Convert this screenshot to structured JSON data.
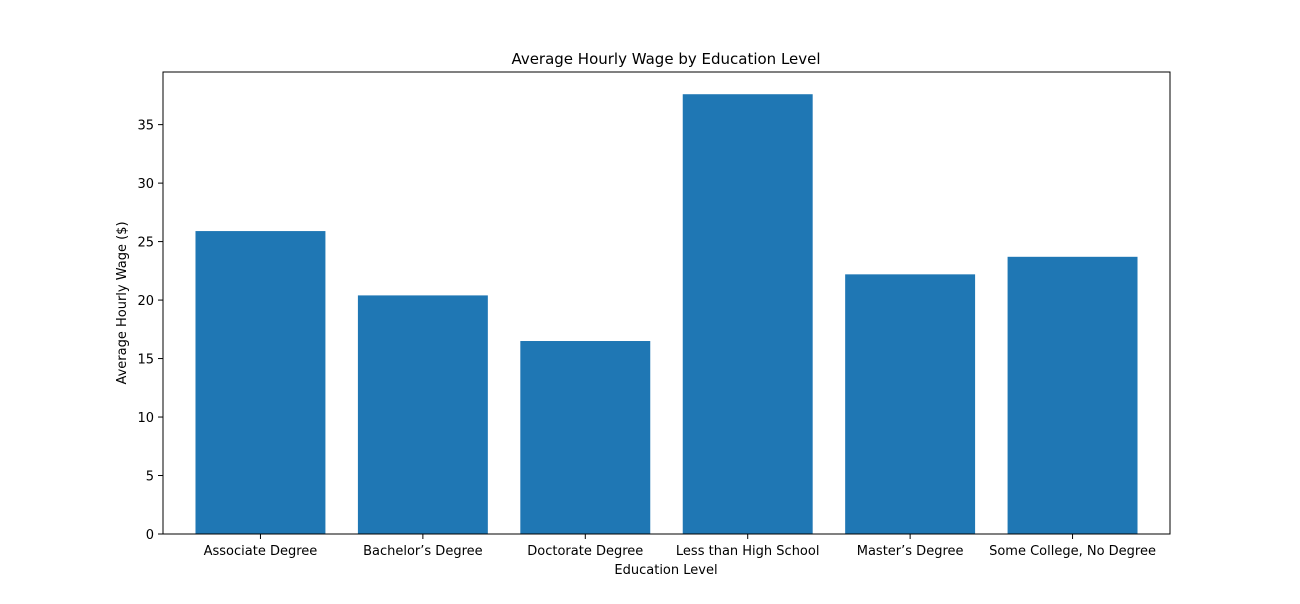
{
  "chart_data": {
    "type": "bar",
    "title": "Average Hourly Wage by Education Level",
    "xlabel": "Education Level",
    "ylabel": "Average Hourly Wage ($)",
    "categories": [
      "Associate Degree",
      "Bachelor’s Degree",
      "Doctorate Degree",
      "Less than High School",
      "Master’s Degree",
      "Some College, No Degree"
    ],
    "values": [
      25.9,
      20.4,
      16.5,
      37.6,
      22.2,
      23.7
    ],
    "ylim": [
      0,
      39.5
    ],
    "yticks": [
      0,
      5,
      10,
      15,
      20,
      25,
      30,
      35
    ],
    "grid": false,
    "bar_color": "#1f77b4"
  }
}
